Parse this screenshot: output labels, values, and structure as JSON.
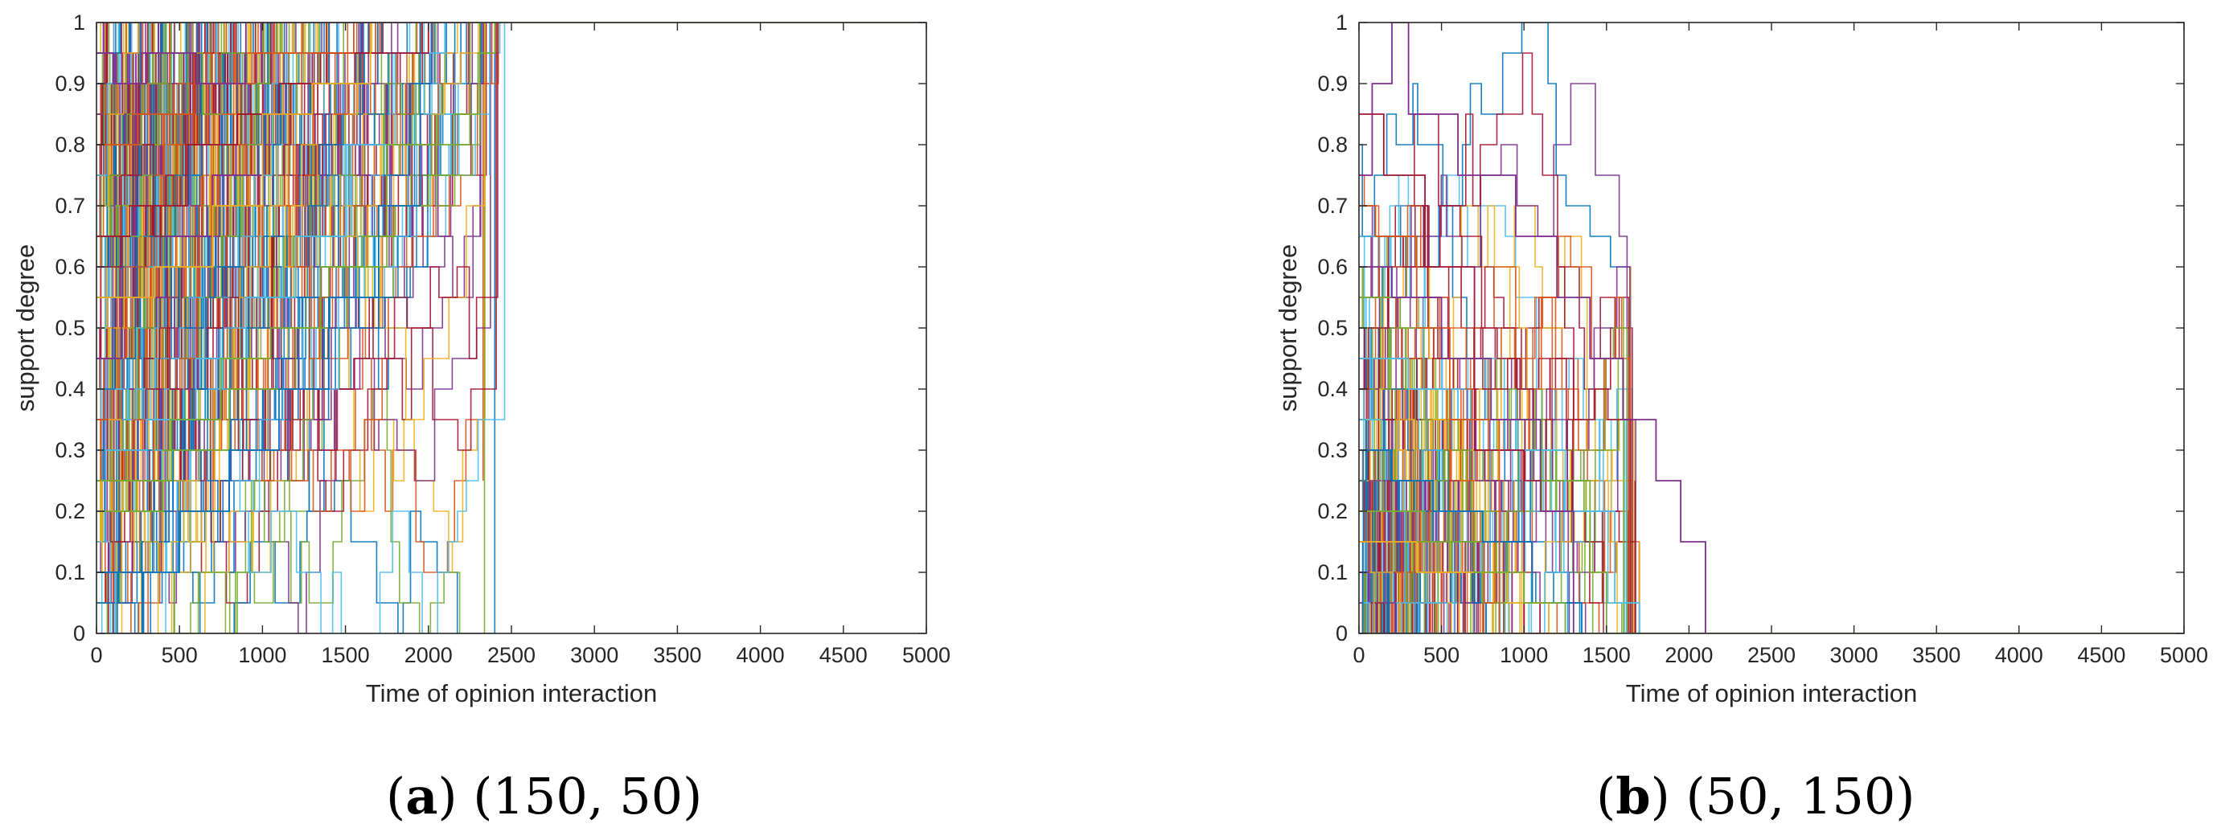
{
  "figure": {
    "panels": [
      {
        "caption_letter": "a",
        "caption_params": "(150, 50)",
        "xlabel": "Time of opinion interaction",
        "ylabel": "support degree",
        "x_ticks": [
          "0",
          "500",
          "1000",
          "1500",
          "2000",
          "2500",
          "3000",
          "3500",
          "4000",
          "4500",
          "5000"
        ],
        "y_ticks": [
          "0",
          "0.1",
          "0.2",
          "0.3",
          "0.4",
          "0.5",
          "0.6",
          "0.7",
          "0.8",
          "0.9",
          "1"
        ]
      },
      {
        "caption_letter": "b",
        "caption_params": "(50, 150)",
        "xlabel": "Time of opinion interaction",
        "ylabel": "support degree",
        "x_ticks": [
          "0",
          "500",
          "1000",
          "1500",
          "2000",
          "2500",
          "3000",
          "3500",
          "4000",
          "4500",
          "5000"
        ],
        "y_ticks": [
          "0",
          "0.1",
          "0.2",
          "0.3",
          "0.4",
          "0.5",
          "0.6",
          "0.7",
          "0.8",
          "0.9",
          "1"
        ]
      }
    ]
  },
  "chart_data": [
    {
      "type": "line",
      "xlabel": "Time of opinion interaction",
      "ylabel": "support degree",
      "xlim": [
        0,
        5000
      ],
      "ylim": [
        0,
        1
      ],
      "grid": false,
      "line_style": "step",
      "colors": [
        "#0072BD",
        "#D95319",
        "#EDB120",
        "#7E2F8E",
        "#77AC30",
        "#4DBEEE",
        "#A2142F"
      ],
      "series": [
        {
          "x": [
            0,
            150,
            150,
            420,
            420,
            700,
            700,
            1000,
            1000,
            1300,
            1300,
            1600,
            1600,
            1900,
            1900,
            2200,
            2200,
            2420,
            2420,
            5000
          ],
          "y": [
            0.45,
            0.45,
            0.55,
            0.55,
            0.65,
            0.65,
            0.75,
            0.75,
            0.85,
            0.85,
            0.95,
            0.95,
            1,
            1,
            1,
            1,
            1,
            1,
            1,
            1
          ]
        },
        {
          "x": [
            0,
            400,
            400,
            800,
            800,
            1200,
            1200,
            1400,
            1400,
            1600,
            1600,
            1800,
            1800,
            2000,
            2000,
            2150,
            2150,
            2300,
            2300,
            2400,
            2400,
            5000
          ],
          "y": [
            0.2,
            0.2,
            0.3,
            0.3,
            0.4,
            0.4,
            0.5,
            0.5,
            0.6,
            0.6,
            0.65,
            0.65,
            0.7,
            0.7,
            0.75,
            0.75,
            0.85,
            0.85,
            0.95,
            0.95,
            1,
            1
          ]
        },
        {
          "x": [
            0,
            300,
            300,
            600,
            600,
            900,
            900,
            1200,
            1200,
            1500,
            1500,
            1800,
            1800,
            2100,
            2100,
            5000
          ],
          "y": [
            0.3,
            0.3,
            0.35,
            0.35,
            0.45,
            0.45,
            0.55,
            0.55,
            0.65,
            0.65,
            0.8,
            0.8,
            0.95,
            0.95,
            1,
            1
          ]
        },
        {
          "x": [
            0,
            200,
            200,
            550,
            550,
            850,
            850,
            1100,
            1100,
            1350,
            1350,
            1700,
            1700,
            2000,
            2000,
            5000
          ],
          "y": [
            0.65,
            0.65,
            0.7,
            0.7,
            0.8,
            0.8,
            0.85,
            0.85,
            0.9,
            0.9,
            0.95,
            0.95,
            0.95,
            0.95,
            1,
            1
          ]
        },
        {
          "x": [
            0,
            500,
            500,
            800,
            800,
            1100,
            1100,
            1400,
            1400,
            1700,
            1700,
            1950,
            1950,
            5000
          ],
          "y": [
            0.1,
            0.1,
            0.2,
            0.2,
            0.3,
            0.3,
            0.4,
            0.4,
            0.55,
            0.55,
            0.7,
            0.7,
            1,
            1
          ]
        },
        {
          "x": [
            0,
            250,
            250,
            600,
            600,
            950,
            950,
            1250,
            1250,
            1550,
            1550,
            5000
          ],
          "y": [
            0.8,
            0.8,
            0.85,
            0.85,
            0.9,
            0.9,
            0.95,
            0.95,
            0.95,
            0.95,
            1,
            1
          ]
        },
        {
          "x": [
            0,
            350,
            350,
            700,
            700,
            1000,
            1000,
            1300,
            1300,
            1650,
            1650,
            5000
          ],
          "y": [
            0.55,
            0.55,
            0.6,
            0.6,
            0.7,
            0.7,
            0.85,
            0.85,
            0.9,
            0.9,
            1,
            1
          ]
        },
        {
          "x": [
            0,
            100,
            100,
            300,
            300,
            600,
            600,
            900,
            900,
            1200,
            1200,
            5000
          ],
          "y": [
            0.95,
            0.95,
            0.9,
            0.9,
            0.95,
            0.95,
            0.9,
            0.9,
            1,
            1,
            1,
            1
          ]
        },
        {
          "x": [
            0,
            450,
            450,
            750,
            750,
            1050,
            1050,
            1350,
            1350,
            1750,
            1750,
            2250,
            2250,
            5000
          ],
          "y": [
            0.25,
            0.25,
            0.35,
            0.35,
            0.45,
            0.45,
            0.5,
            0.5,
            0.6,
            0.6,
            0.8,
            0.8,
            1,
            1
          ]
        }
      ]
    },
    {
      "type": "line",
      "xlabel": "Time of opinion interaction",
      "ylabel": "support degree",
      "xlim": [
        0,
        5000
      ],
      "ylim": [
        0,
        1
      ],
      "grid": false,
      "line_style": "step",
      "colors": [
        "#0072BD",
        "#D95319",
        "#EDB120",
        "#7E2F8E",
        "#77AC30",
        "#4DBEEE",
        "#A2142F"
      ],
      "series": [
        {
          "x": [
            0,
            80,
            80,
            200,
            200,
            300,
            300,
            600,
            600,
            950,
            950,
            1200,
            1200,
            1400,
            1400,
            1600,
            1600,
            1800,
            1800,
            1950,
            1950,
            2100,
            2100,
            5000
          ],
          "y": [
            0.75,
            0.75,
            0.9,
            0.9,
            1,
            1,
            0.85,
            0.85,
            0.75,
            0.75,
            0.65,
            0.65,
            0.55,
            0.55,
            0.45,
            0.45,
            0.35,
            0.35,
            0.25,
            0.25,
            0.15,
            0.15,
            0,
            0
          ]
        },
        {
          "x": [
            0,
            250,
            250,
            500,
            500,
            800,
            800,
            1100,
            1100,
            1400,
            1400,
            1500,
            1500,
            5000
          ],
          "y": [
            0.55,
            0.55,
            0.5,
            0.5,
            0.45,
            0.45,
            0.35,
            0.35,
            0.25,
            0.25,
            0.1,
            0.1,
            0,
            0
          ]
        },
        {
          "x": [
            0,
            300,
            300,
            600,
            600,
            950,
            950,
            1250,
            1250,
            1550,
            1550,
            1700,
            1700,
            5000
          ],
          "y": [
            0.45,
            0.45,
            0.4,
            0.4,
            0.35,
            0.35,
            0.3,
            0.3,
            0.2,
            0.2,
            0.05,
            0.05,
            0,
            0
          ]
        },
        {
          "x": [
            0,
            150,
            150,
            400,
            400,
            700,
            700,
            1000,
            1000,
            5000
          ],
          "y": [
            0.85,
            0.85,
            0.75,
            0.75,
            0.6,
            0.6,
            0.3,
            0.3,
            0,
            0
          ]
        },
        {
          "x": [
            0,
            200,
            200,
            450,
            450,
            750,
            750,
            1050,
            1050,
            1350,
            1350,
            5000
          ],
          "y": [
            0.3,
            0.3,
            0.25,
            0.25,
            0.2,
            0.2,
            0.15,
            0.15,
            0.05,
            0.05,
            0,
            0
          ]
        },
        {
          "x": [
            0,
            100,
            100,
            350,
            350,
            550,
            550,
            850,
            850,
            5000
          ],
          "y": [
            0.7,
            0.7,
            0.65,
            0.65,
            0.5,
            0.5,
            0.35,
            0.35,
            0,
            0
          ]
        },
        {
          "x": [
            0,
            350,
            350,
            650,
            650,
            900,
            900,
            1150,
            1150,
            5000
          ],
          "y": [
            0.15,
            0.15,
            0.1,
            0.1,
            0.1,
            0.1,
            0.05,
            0.05,
            0,
            0
          ]
        },
        {
          "x": [
            0,
            200,
            200,
            500,
            500,
            800,
            800,
            1100,
            1100,
            1300,
            1300,
            5000
          ],
          "y": [
            0.6,
            0.6,
            0.55,
            0.55,
            0.45,
            0.45,
            0.35,
            0.35,
            0.2,
            0.2,
            0,
            0
          ]
        },
        {
          "x": [
            0,
            400,
            400,
            700,
            700,
            1000,
            1000,
            1250,
            1250,
            5000
          ],
          "y": [
            0.2,
            0.2,
            0.15,
            0.15,
            0.1,
            0.1,
            0.05,
            0.05,
            0,
            0
          ]
        }
      ]
    }
  ]
}
